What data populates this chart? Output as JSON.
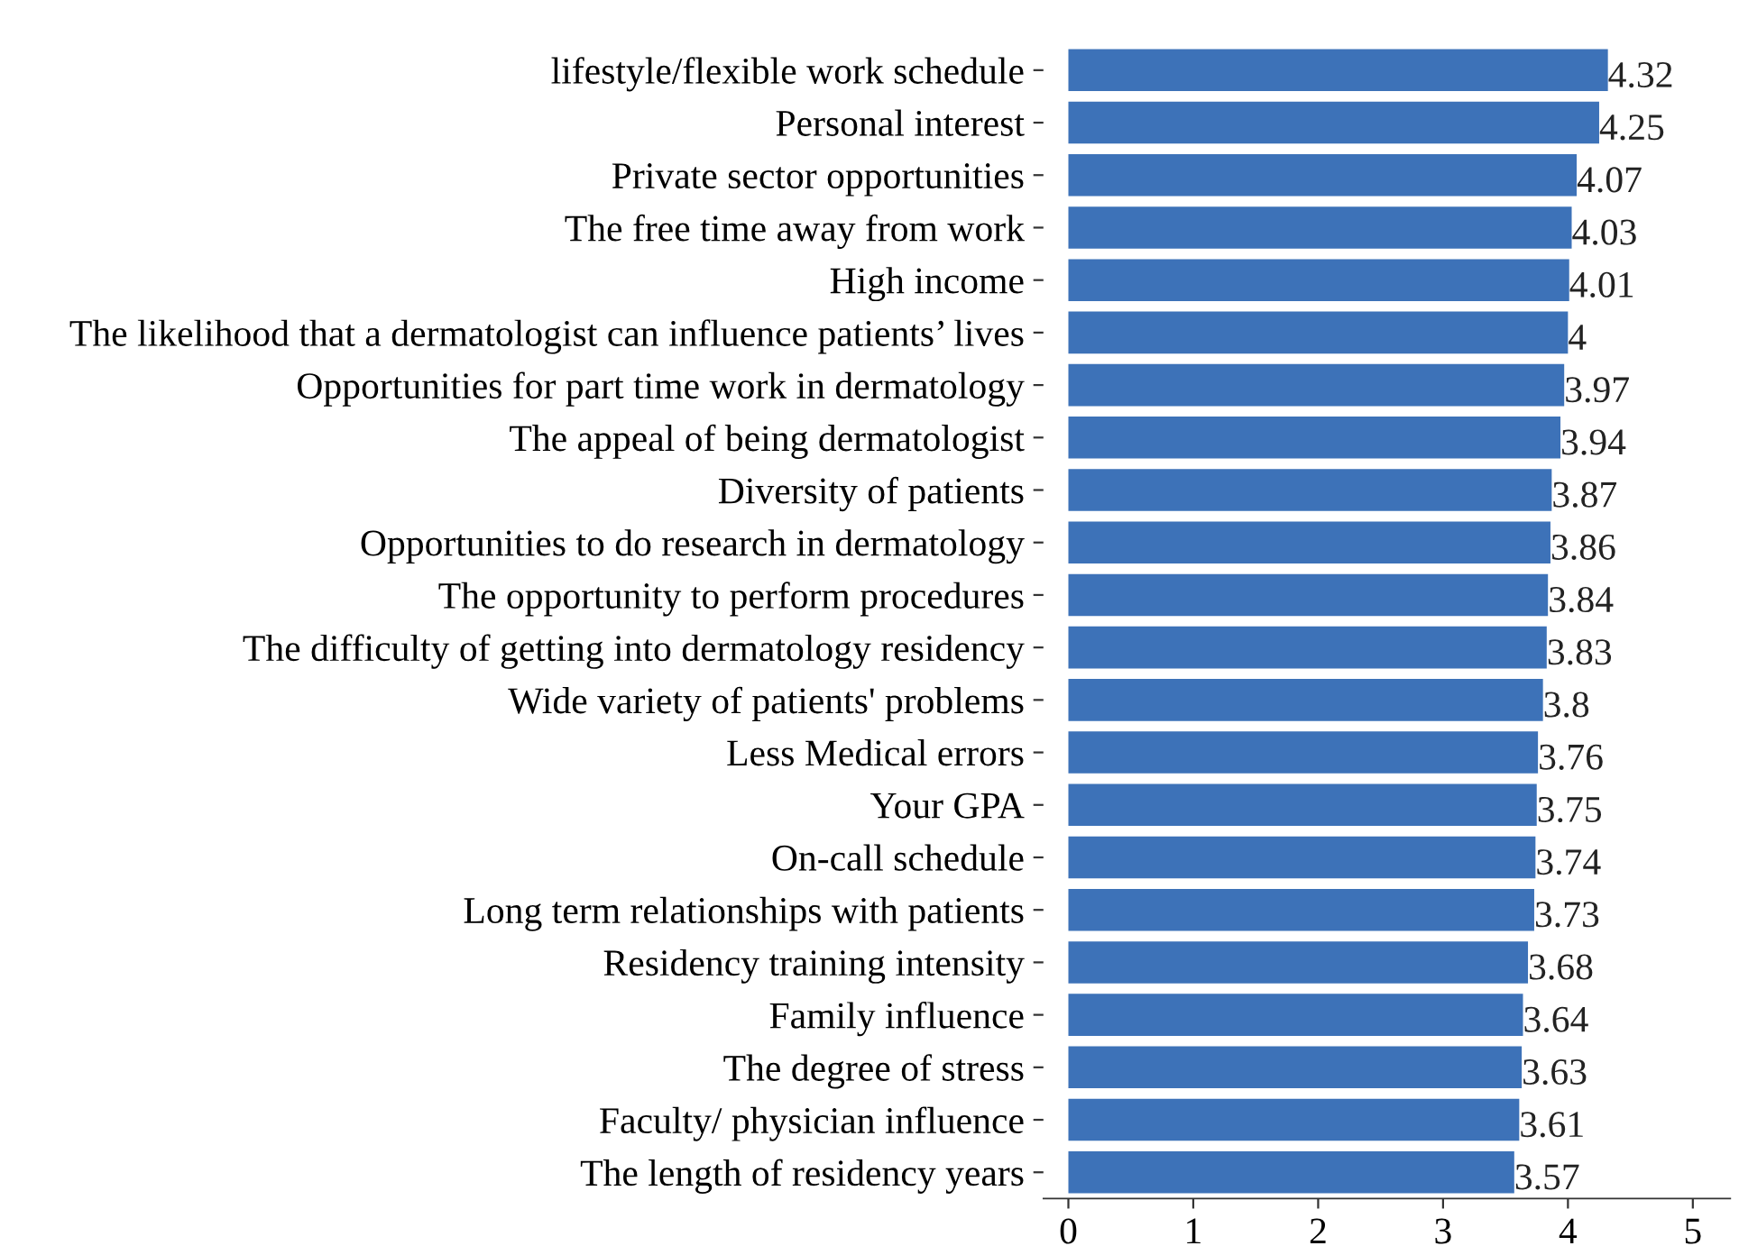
{
  "chart_data": {
    "type": "bar",
    "orientation": "horizontal",
    "categories": [
      "lifestyle/flexible work schedule",
      "Personal interest",
      "Private sector opportunities",
      "The free time away from work",
      "High income",
      "The likelihood that a dermatologist can influence patients’ lives",
      "Opportunities for part time work in dermatology",
      "The appeal of being dermatologist",
      "Diversity of patients",
      "Opportunities to do research in dermatology",
      "The opportunity to perform procedures",
      "The difficulty of getting into dermatology residency",
      "Wide variety of patients' problems",
      "Less Medical errors",
      "Your GPA",
      "On-call schedule",
      "Long term relationships with patients",
      "Residency training intensity",
      "Family influence",
      "The degree of stress",
      "Faculty/ physician influence",
      "The length of residency years"
    ],
    "values": [
      4.32,
      4.25,
      4.07,
      4.03,
      4.01,
      4,
      3.97,
      3.94,
      3.87,
      3.86,
      3.84,
      3.83,
      3.8,
      3.76,
      3.75,
      3.74,
      3.73,
      3.68,
      3.64,
      3.63,
      3.61,
      3.57
    ],
    "color": "#3d72b8",
    "data_labels": true,
    "xlim": [
      -0.2,
      5.3
    ],
    "xticks": [
      0,
      1,
      2,
      3,
      4,
      5
    ],
    "grid": false
  }
}
